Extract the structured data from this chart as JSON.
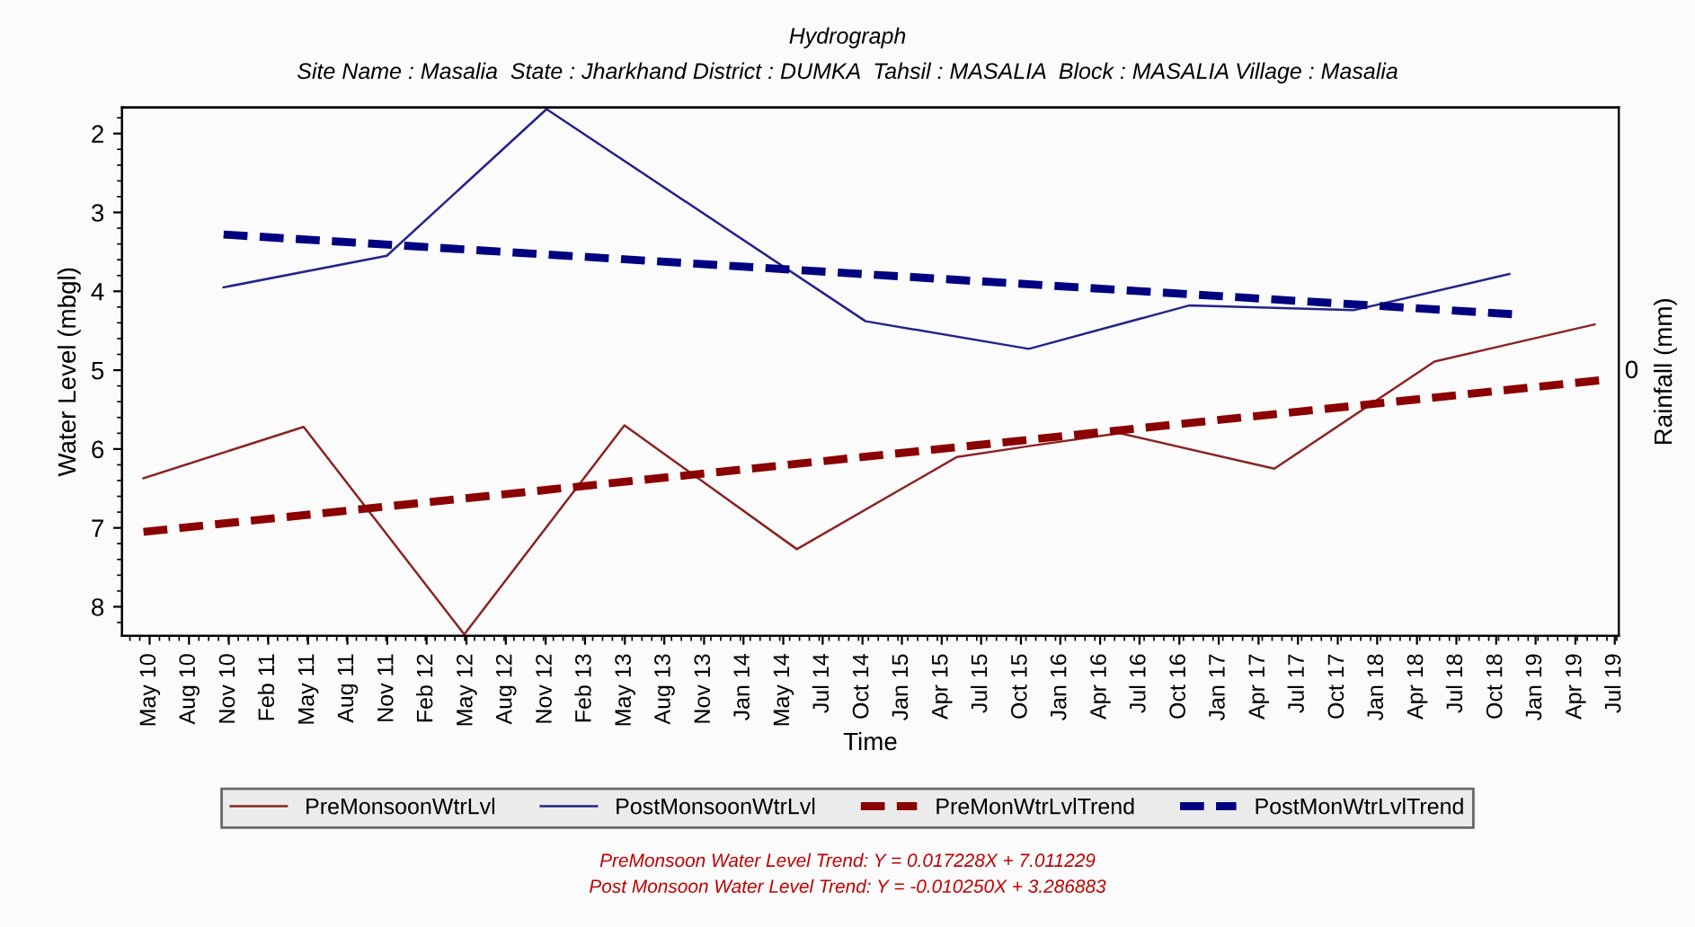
{
  "chart_data": {
    "type": "line",
    "title": "Hydrograph",
    "subtitle": "Site Name : Masalia  State : Jharkhand District : DUMKA  Tahsil : MASALIA  Block : MASALIA Village : Masalia",
    "xlabel": "Time",
    "ylabel": "Water Level (mbgl)",
    "y2label": "Rainfall (mm)",
    "xlim": [
      "2010-03-13",
      "2019-07-24"
    ],
    "xticks": [
      {
        "value": "2010-05-15",
        "label": "May 10"
      },
      {
        "value": "2010-08-13",
        "label": "Aug 10"
      },
      {
        "value": "2010-11-12",
        "label": "Nov 10"
      },
      {
        "value": "2011-02-10",
        "label": "Feb 11"
      },
      {
        "value": "2011-05-12",
        "label": "May 11"
      },
      {
        "value": "2011-08-10",
        "label": "Aug 11"
      },
      {
        "value": "2011-11-09",
        "label": "Nov 11"
      },
      {
        "value": "2012-02-07",
        "label": "Feb 12"
      },
      {
        "value": "2012-05-08",
        "label": "May 12"
      },
      {
        "value": "2012-08-06",
        "label": "Aug 12"
      },
      {
        "value": "2012-11-05",
        "label": "Nov 12"
      },
      {
        "value": "2013-02-03",
        "label": "Feb 13"
      },
      {
        "value": "2013-05-05",
        "label": "May 13"
      },
      {
        "value": "2013-08-03",
        "label": "Aug 13"
      },
      {
        "value": "2013-11-02",
        "label": "Nov 13"
      },
      {
        "value": "2014-01-31",
        "label": "Jan 14"
      },
      {
        "value": "2014-05-02",
        "label": "May 14"
      },
      {
        "value": "2014-07-31",
        "label": "Jul 14"
      },
      {
        "value": "2014-10-30",
        "label": "Oct 14"
      },
      {
        "value": "2015-01-28",
        "label": "Jan 15"
      },
      {
        "value": "2015-04-29",
        "label": "Apr 15"
      },
      {
        "value": "2015-07-28",
        "label": "Jul 15"
      },
      {
        "value": "2015-10-27",
        "label": "Oct 15"
      },
      {
        "value": "2016-01-25",
        "label": "Jan 16"
      },
      {
        "value": "2016-04-25",
        "label": "Apr 16"
      },
      {
        "value": "2016-07-24",
        "label": "Jul 16"
      },
      {
        "value": "2016-10-23",
        "label": "Oct 16"
      },
      {
        "value": "2017-01-21",
        "label": "Jan 17"
      },
      {
        "value": "2017-04-22",
        "label": "Apr 17"
      },
      {
        "value": "2017-07-21",
        "label": "Jul 17"
      },
      {
        "value": "2017-10-20",
        "label": "Oct 17"
      },
      {
        "value": "2018-01-18",
        "label": "Jan 18"
      },
      {
        "value": "2018-04-19",
        "label": "Apr 18"
      },
      {
        "value": "2018-07-18",
        "label": "Jul 18"
      },
      {
        "value": "2018-10-17",
        "label": "Oct 18"
      },
      {
        "value": "2019-01-15",
        "label": "Jan 19"
      },
      {
        "value": "2019-04-16",
        "label": "Apr 19"
      },
      {
        "value": "2019-07-15",
        "label": "Jul 19"
      }
    ],
    "ylim": [
      8.37,
      1.67
    ],
    "yticks": [
      2,
      3,
      4,
      5,
      6,
      7,
      8
    ],
    "grid": false,
    "legend": "bottom",
    "marker": "none",
    "series": [
      {
        "name": "PreMonsoonWtrLvl",
        "color": "#8b2323",
        "line_style": "solid",
        "x": [
          "2010-05-01",
          "2011-05-02",
          "2012-05-03",
          "2013-05-04",
          "2014-06-02",
          "2015-06-03",
          "2015-11-18",
          "2016-06-09",
          "2017-05-28",
          "2018-05-29",
          "2018-11-16",
          "2019-05-30"
        ],
        "values": [
          6.37,
          5.72,
          8.35,
          5.7,
          7.27,
          6.1,
          5.96,
          5.8,
          6.25,
          4.89,
          4.67,
          4.42
        ]
      },
      {
        "name": "PostMonsoonWtrLvl",
        "color": "#23238b",
        "line_style": "solid",
        "x": [
          "2010-10-31",
          "2011-11-08",
          "2012-11-07",
          "2014-11-06",
          "2015-11-14",
          "2016-11-14",
          "2017-11-25",
          "2018-11-16"
        ],
        "values": [
          3.95,
          3.55,
          1.69,
          4.38,
          4.73,
          4.18,
          4.24,
          3.78
        ]
      },
      {
        "name": "PreMonWtrLvlTrend",
        "color": "#8b0000",
        "line_style": "dashed",
        "x": [
          "2010-05-01",
          "2019-06-09"
        ],
        "values": [
          7.05,
          5.13
        ]
      },
      {
        "name": "PostMonWtrLvlTrend",
        "color": "#000080",
        "line_style": "dashed",
        "x": [
          "2010-10-31",
          "2018-11-22"
        ],
        "values": [
          3.28,
          4.29
        ]
      }
    ],
    "annotations": [
      "0",
      "PreMonsoon Water Level Trend: Y = 0.017228X + 7.011229",
      "Post Monsoon Water Level Trend: Y = -0.010250X + 3.286883"
    ]
  }
}
